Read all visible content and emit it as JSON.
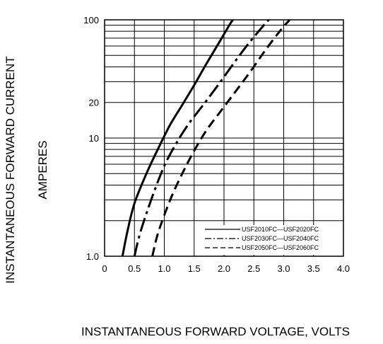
{
  "chart_data": {
    "type": "line",
    "title": "",
    "ylabel_line1": "INSTANTANEOUS FORWARD CURRENT",
    "ylabel_line2": "AMPERES",
    "xlabel": "INSTANTANEOUS FORWARD VOLTAGE,  VOLTS",
    "x_scale": "linear",
    "y_scale": "log",
    "xlim": [
      0,
      4.0
    ],
    "ylim": [
      1.0,
      100
    ],
    "x_ticks": [
      {
        "value": 0,
        "label": "0"
      },
      {
        "value": 0.5,
        "label": "0.5"
      },
      {
        "value": 1.0,
        "label": "1.0"
      },
      {
        "value": 1.5,
        "label": "1.5"
      },
      {
        "value": 2.0,
        "label": "2.0"
      },
      {
        "value": 2.5,
        "label": "2.5"
      },
      {
        "value": 3.0,
        "label": "3.0"
      },
      {
        "value": 3.5,
        "label": "3.5"
      },
      {
        "value": 4.0,
        "label": "4.0"
      }
    ],
    "y_ticks": [
      {
        "value": 1.0,
        "label": "1.0"
      },
      {
        "value": 10,
        "label": "10"
      },
      {
        "value": 20,
        "label": "20"
      },
      {
        "value": 100,
        "label": "100"
      }
    ],
    "grid": true,
    "legend_position": "bottom-right",
    "series": [
      {
        "name": "USF2010FC—USF2020FC",
        "style": "solid",
        "points": [
          [
            0.3,
            1.0
          ],
          [
            0.38,
            1.6
          ],
          [
            0.5,
            2.8
          ],
          [
            0.7,
            5.0
          ],
          [
            0.9,
            8.2
          ],
          [
            1.1,
            13
          ],
          [
            1.3,
            19
          ],
          [
            1.5,
            28
          ],
          [
            1.7,
            42
          ],
          [
            1.9,
            62
          ],
          [
            2.1,
            92
          ],
          [
            2.15,
            100
          ]
        ]
      },
      {
        "name": "USF2030FC—USF2040FC",
        "style": "dash-dot",
        "points": [
          [
            0.5,
            1.0
          ],
          [
            0.6,
            1.6
          ],
          [
            0.8,
            3.2
          ],
          [
            1.0,
            5.8
          ],
          [
            1.2,
            9.0
          ],
          [
            1.4,
            13
          ],
          [
            1.65,
            19
          ],
          [
            1.9,
            28
          ],
          [
            2.15,
            42
          ],
          [
            2.4,
            62
          ],
          [
            2.65,
            88
          ],
          [
            2.75,
            100
          ]
        ]
      },
      {
        "name": "USF2050FC—USF2060FC",
        "style": "dashed",
        "points": [
          [
            0.8,
            1.0
          ],
          [
            0.9,
            1.6
          ],
          [
            1.1,
            3.0
          ],
          [
            1.3,
            5.0
          ],
          [
            1.5,
            7.8
          ],
          [
            1.7,
            11.5
          ],
          [
            1.95,
            17
          ],
          [
            2.2,
            25
          ],
          [
            2.45,
            37
          ],
          [
            2.7,
            56
          ],
          [
            2.95,
            82
          ],
          [
            3.1,
            100
          ]
        ]
      }
    ]
  }
}
